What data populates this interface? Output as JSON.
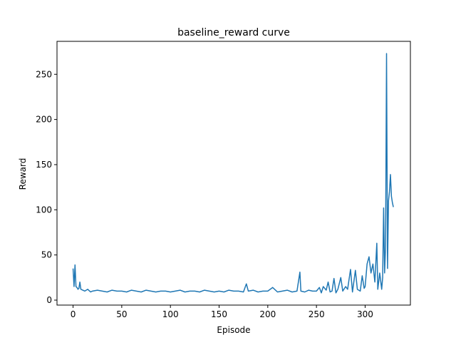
{
  "chart_data": {
    "type": "line",
    "title": "baseline_reward curve",
    "x_label": "Episode",
    "y_label": "Reward",
    "x": [
      0,
      1,
      2,
      3,
      4,
      5,
      6,
      7,
      8,
      10,
      12,
      15,
      18,
      20,
      25,
      30,
      35,
      40,
      45,
      50,
      55,
      60,
      65,
      70,
      75,
      80,
      85,
      90,
      95,
      100,
      105,
      110,
      115,
      120,
      125,
      130,
      135,
      140,
      145,
      150,
      155,
      160,
      165,
      170,
      175,
      178,
      180,
      185,
      190,
      195,
      200,
      205,
      210,
      215,
      220,
      225,
      230,
      233,
      234,
      238,
      242,
      246,
      250,
      253,
      255,
      257,
      260,
      262,
      264,
      266,
      268,
      270,
      272,
      275,
      277,
      280,
      282,
      285,
      287,
      290,
      292,
      295,
      297,
      299,
      300,
      302,
      304,
      306,
      308,
      310,
      312,
      313,
      315,
      317,
      318,
      319,
      320,
      321,
      322,
      323,
      324,
      325,
      326,
      327,
      328,
      329
    ],
    "series": [
      {
        "name": "baseline_reward",
        "color": "#1f77b4",
        "values": [
          35,
          15,
          39,
          15,
          14,
          12,
          13,
          20,
          12,
          11,
          10,
          12,
          9,
          10,
          11,
          10,
          9,
          11,
          10,
          10,
          9,
          11,
          10,
          9,
          11,
          10,
          9,
          10,
          10,
          9,
          10,
          11,
          9,
          10,
          10,
          9,
          11,
          10,
          9,
          10,
          9,
          11,
          10,
          10,
          9,
          18,
          10,
          11,
          9,
          10,
          10,
          14,
          9,
          10,
          11,
          9,
          10,
          31,
          10,
          9,
          11,
          10,
          10,
          14,
          8,
          15,
          11,
          20,
          9,
          10,
          24,
          8,
          12,
          25,
          10,
          15,
          12,
          34,
          9,
          33,
          12,
          10,
          27,
          13,
          15,
          40,
          48,
          30,
          40,
          20,
          63,
          12,
          30,
          12,
          25,
          102,
          30,
          60,
          273,
          35,
          110,
          120,
          139,
          115,
          108,
          103
        ]
      }
    ],
    "xlim": [
      -16.5,
      346.5
    ],
    "ylim": [
      -5.5,
      286.5
    ],
    "xticks": [
      0,
      50,
      100,
      150,
      200,
      250,
      300
    ],
    "yticks": [
      0,
      50,
      100,
      150,
      200,
      250
    ]
  }
}
